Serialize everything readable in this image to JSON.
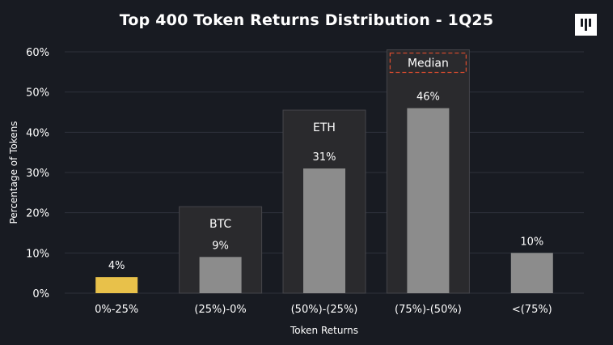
{
  "title": "Top 400 Token Returns Distribution - 1Q25",
  "logo_icon": "pantera-logo-icon",
  "chart_data": {
    "type": "bar",
    "title": "Top 400 Token Returns Distribution - 1Q25",
    "xlabel": "Token Returns",
    "ylabel": "Percentage of Tokens",
    "ylim": [
      0,
      60
    ],
    "yticks": [
      0,
      10,
      20,
      30,
      40,
      50,
      60
    ],
    "ytick_labels": [
      "0%",
      "10%",
      "20%",
      "30%",
      "40%",
      "50%",
      "60%"
    ],
    "categories": [
      "0%-25%",
      "(25%)-0%",
      "(50%)-(25%)",
      "(75%)-(50%)",
      "<(75%)"
    ],
    "values": [
      4,
      9,
      31,
      46,
      10
    ],
    "data_labels": [
      "4%",
      "9%",
      "31%",
      "46%",
      "10%"
    ],
    "bar_colors": [
      "#e8c14a",
      "#8c8c8c",
      "#8c8c8c",
      "#8c8c8c",
      "#8c8c8c"
    ],
    "grid": true,
    "annotations": [
      {
        "label": "BTC",
        "category": "(25%)-0%",
        "box_top": 21.5
      },
      {
        "label": "ETH",
        "category": "(50%)-(25%)",
        "box_top": 45.5
      },
      {
        "label": "Median",
        "category": "(75%)-(50%)",
        "box_top": 60.5,
        "highlight": true
      }
    ],
    "colors": {
      "background": "#181b22",
      "grid": "#2e323b",
      "annotation_box": "#2a2a2d",
      "annotation_border": "#45454a",
      "median_border": "#d04a2f"
    }
  }
}
